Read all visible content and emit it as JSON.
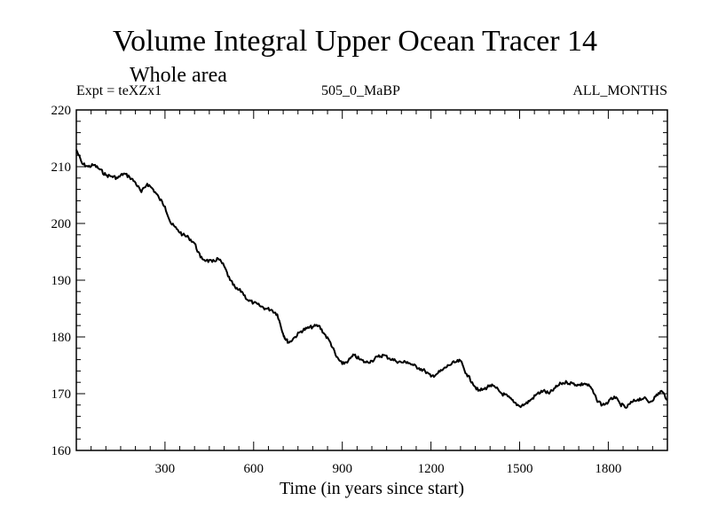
{
  "header": {
    "title": "Volume Integral Upper Ocean Tracer 14",
    "subtitle": "Whole area",
    "expt": "Expt = teXZx1",
    "run": "505_0_MaBP",
    "months": "ALL_MONTHS"
  },
  "chart_data": {
    "type": "line",
    "title": "Volume Integral Upper Ocean Tracer 14",
    "xlabel": "Time (in years since start)",
    "ylabel": "",
    "xlim": [
      0,
      2000
    ],
    "ylim": [
      160,
      220
    ],
    "xticks": [
      300,
      600,
      900,
      1200,
      1500,
      1800
    ],
    "yticks": [
      160,
      170,
      180,
      190,
      200,
      210,
      220
    ],
    "series": [
      {
        "name": "Tracer 14",
        "x": [
          0,
          20,
          40,
          60,
          80,
          100,
          120,
          140,
          160,
          180,
          200,
          220,
          240,
          260,
          280,
          300,
          320,
          340,
          360,
          380,
          400,
          420,
          440,
          460,
          480,
          500,
          520,
          540,
          560,
          580,
          600,
          620,
          640,
          660,
          680,
          700,
          710,
          720,
          740,
          760,
          780,
          800,
          820,
          840,
          860,
          880,
          900,
          920,
          940,
          960,
          980,
          1000,
          1020,
          1040,
          1060,
          1080,
          1100,
          1120,
          1140,
          1160,
          1180,
          1200,
          1220,
          1240,
          1260,
          1280,
          1300,
          1320,
          1340,
          1360,
          1380,
          1400,
          1420,
          1440,
          1460,
          1480,
          1500,
          1520,
          1540,
          1560,
          1580,
          1600,
          1620,
          1640,
          1660,
          1680,
          1700,
          1720,
          1740,
          1760,
          1780,
          1800,
          1820,
          1840,
          1860,
          1880,
          1900,
          1920,
          1940,
          1960,
          1980,
          2000
        ],
        "values": [
          213,
          210.5,
          210,
          210.3,
          209.5,
          208.5,
          208.3,
          208,
          208.8,
          208.2,
          207.2,
          205.5,
          207,
          206,
          204.5,
          203,
          200,
          199,
          198,
          197.5,
          196.5,
          194,
          193.5,
          193.2,
          193.8,
          192.5,
          190,
          188.5,
          188,
          186.5,
          186,
          185.5,
          185,
          184.8,
          184,
          180.5,
          179.5,
          179,
          180,
          181,
          181.5,
          181.8,
          182,
          180.5,
          179,
          176.5,
          175.2,
          175.8,
          176.8,
          176,
          175.5,
          175.8,
          176.5,
          176.8,
          176.2,
          175.8,
          175.5,
          175.6,
          175,
          174.5,
          174,
          173,
          173.5,
          174.2,
          175,
          175.5,
          175.8,
          173.5,
          172,
          170.5,
          170.8,
          171.5,
          171,
          170,
          169.5,
          168.5,
          167.8,
          168.2,
          169,
          170,
          170.5,
          170,
          171,
          171.8,
          172,
          171.8,
          171.5,
          171.8,
          171.2,
          169,
          168,
          168.5,
          169.5,
          168.2,
          167.5,
          168.5,
          169,
          169.2,
          168.5,
          169.5,
          170.5,
          169
        ]
      }
    ]
  }
}
